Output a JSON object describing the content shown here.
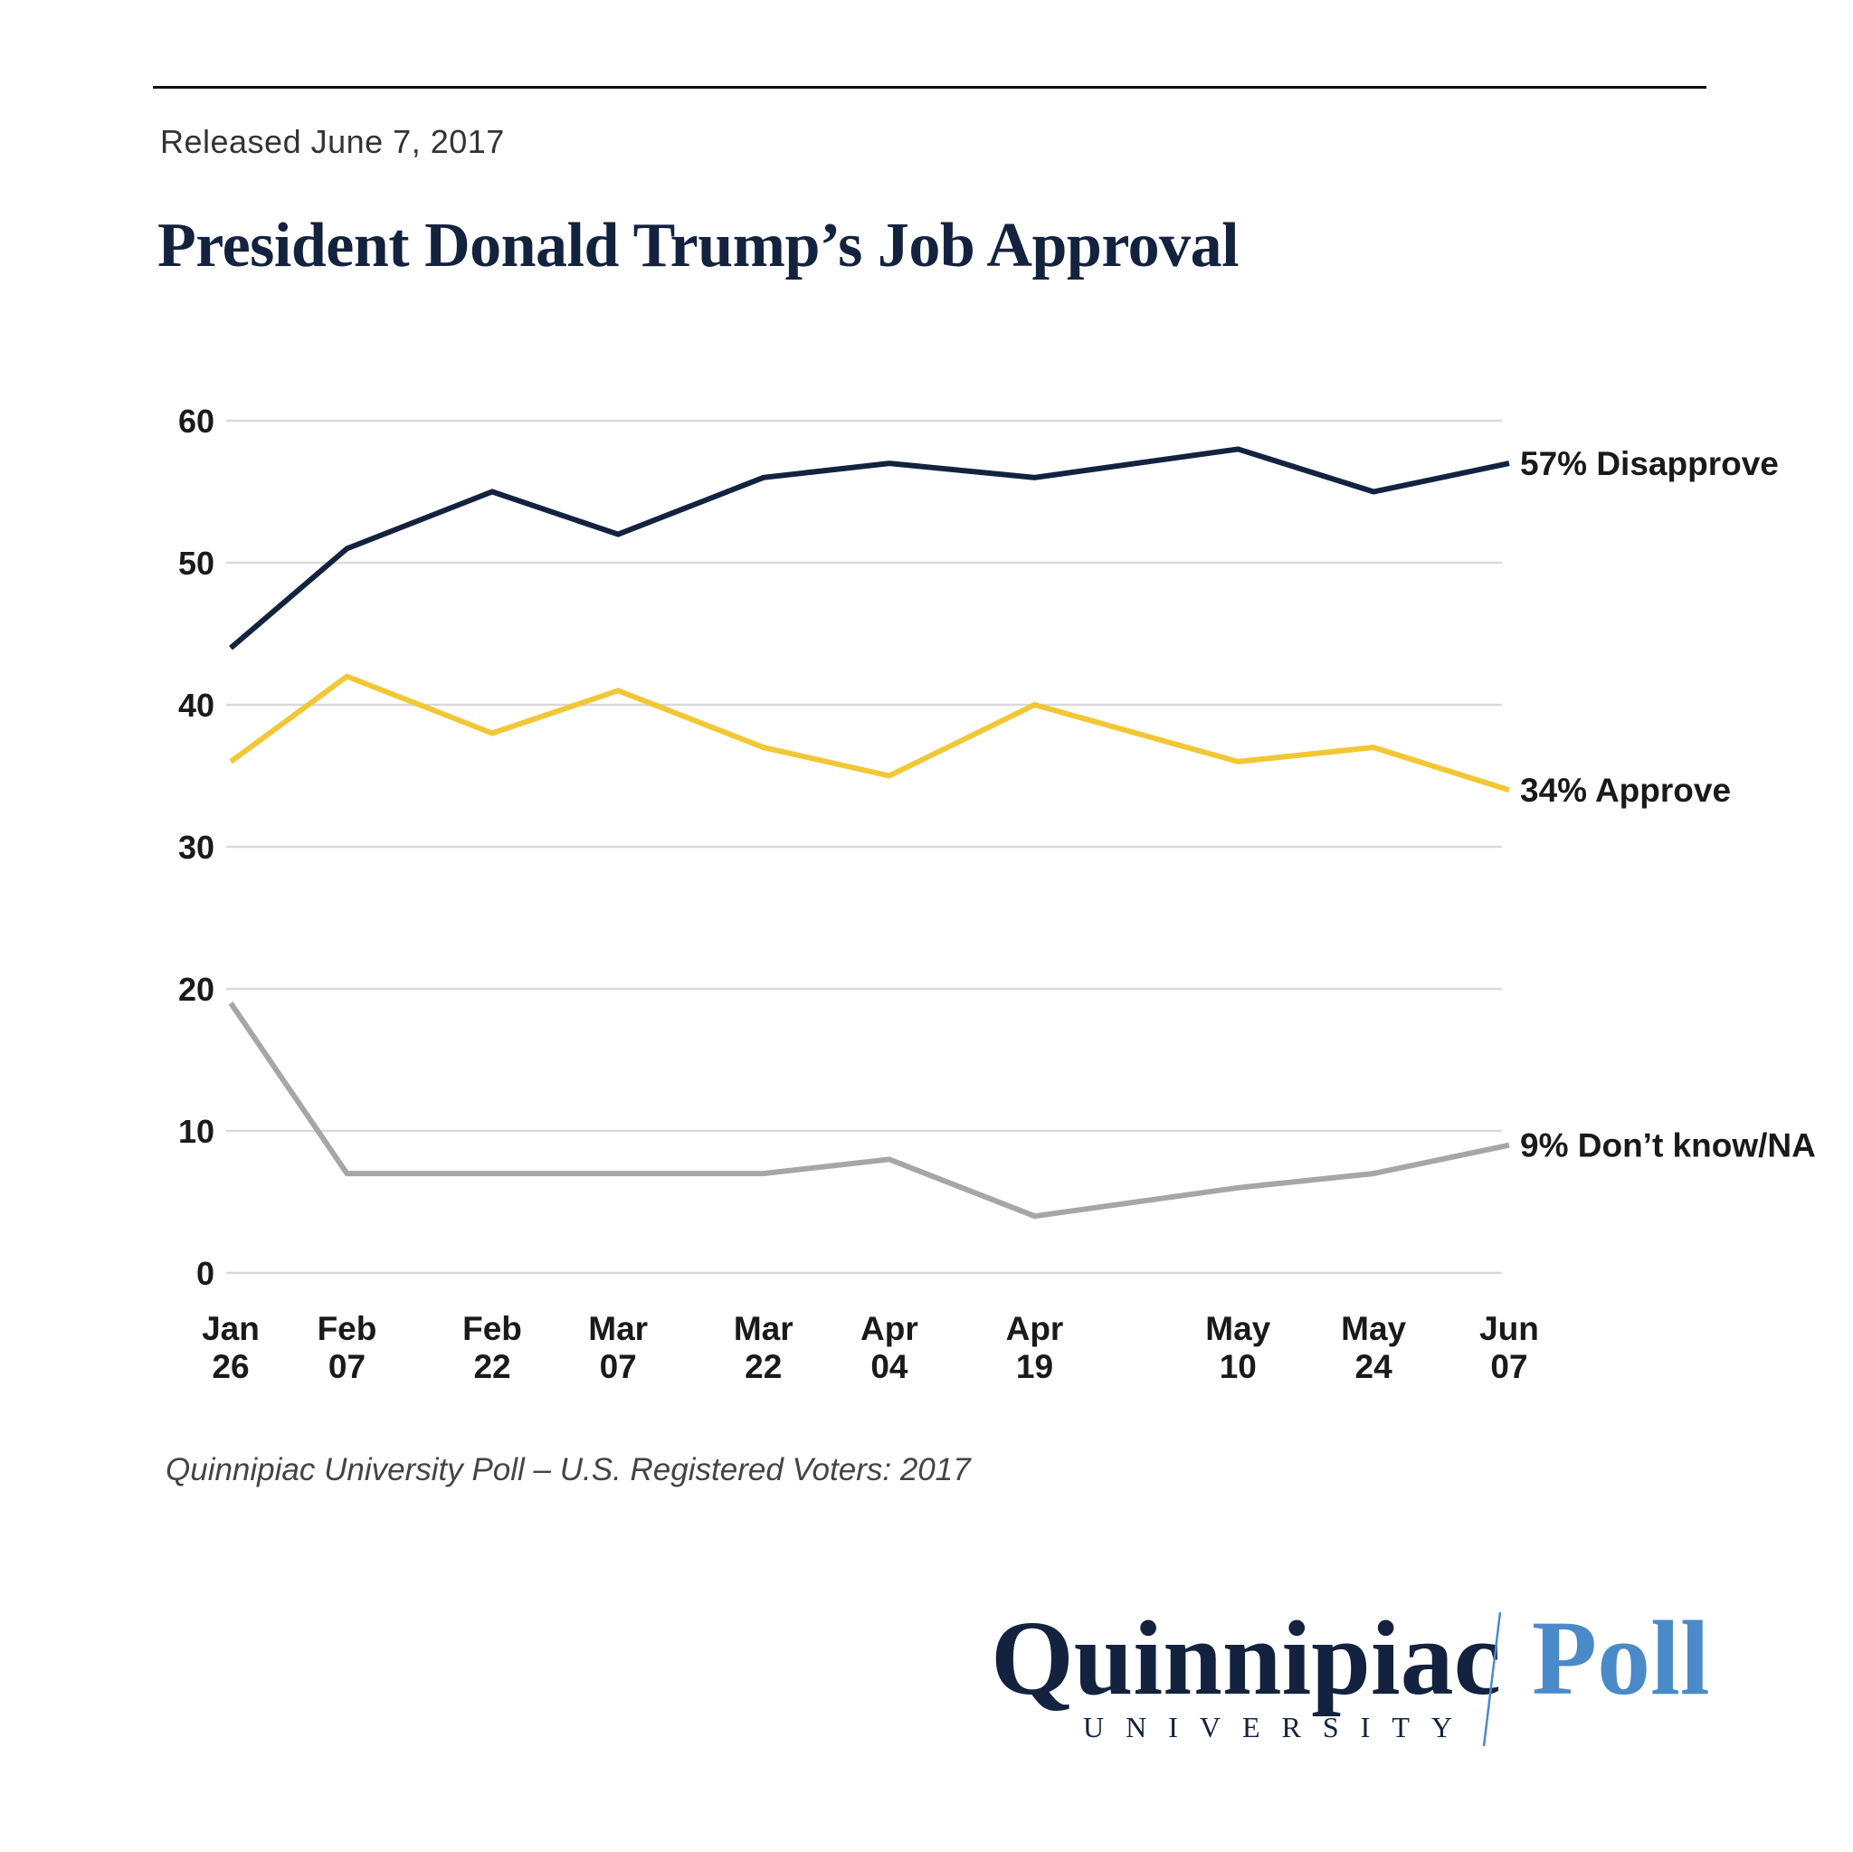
{
  "released": "Released June 7, 2017",
  "title": "President Donald Trump’s Job Approval",
  "source": "Quinnipiac University Poll – U.S. Registered Voters: 2017",
  "logo": {
    "word": "Quinnipiac",
    "sub": "UNIVERSITY",
    "poll": "Poll",
    "colors": {
      "navy": "#13223f",
      "blue": "#4a8ac9"
    }
  },
  "chart_data": {
    "type": "line",
    "title": "President Donald Trump’s Job Approval",
    "ylim": [
      0,
      60
    ],
    "yticks": [
      0,
      10,
      20,
      30,
      40,
      50,
      60
    ],
    "grid": true,
    "legend": "end-of-line labels",
    "x": [
      [
        "Jan",
        "26"
      ],
      [
        "Feb",
        "07"
      ],
      [
        "Feb",
        "22"
      ],
      [
        "Mar",
        "07"
      ],
      [
        "Mar",
        "22"
      ],
      [
        "Apr",
        "04"
      ],
      [
        "Apr",
        "19"
      ],
      [
        "May",
        "10"
      ],
      [
        "May",
        "24"
      ],
      [
        "Jun",
        "07"
      ]
    ],
    "dates": [
      "2017-01-26",
      "2017-02-07",
      "2017-02-22",
      "2017-03-07",
      "2017-03-22",
      "2017-04-04",
      "2017-04-19",
      "2017-05-10",
      "2017-05-24",
      "2017-06-07"
    ],
    "series": [
      {
        "name": "Disapprove",
        "label": "57% Disapprove",
        "color": "#13223f",
        "values": [
          44,
          51,
          55,
          52,
          56,
          57,
          56,
          58,
          55,
          57
        ]
      },
      {
        "name": "Approve",
        "label": "34% Approve",
        "color": "#f2c736",
        "values": [
          36,
          42,
          38,
          41,
          37,
          35,
          40,
          36,
          37,
          34
        ]
      },
      {
        "name": "Don’t know/NA",
        "label": "9% Don’t know/NA",
        "color": "#a6a6a6",
        "values": [
          19,
          7,
          7,
          7,
          7,
          8,
          4,
          6,
          7,
          9
        ]
      }
    ]
  }
}
